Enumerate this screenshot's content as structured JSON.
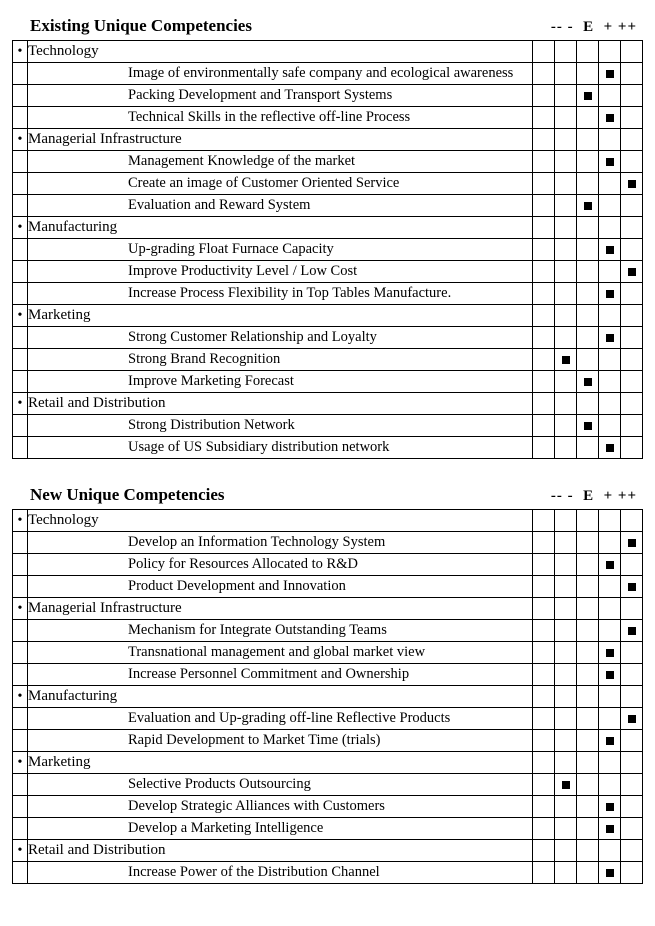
{
  "scale_labels": [
    "--",
    "-",
    "E",
    "+",
    "++"
  ],
  "col_count": 5,
  "mark_color": "#000000",
  "sections": [
    {
      "title": "Existing Unique Competencies",
      "categories": [
        {
          "name": "Technology",
          "items": [
            {
              "label": "Image of environmentally safe company and ecological awareness",
              "rating": 3
            },
            {
              "label": "Packing Development and Transport Systems",
              "rating": 2
            },
            {
              "label": "Technical Skills in the reflective off-line Process",
              "rating": 3
            }
          ]
        },
        {
          "name": "Managerial Infrastructure",
          "items": [
            {
              "label": "Management Knowledge of the market",
              "rating": 3
            },
            {
              "label": "Create an image of Customer Oriented Service",
              "rating": 4
            },
            {
              "label": "Evaluation and Reward System",
              "rating": 2
            }
          ]
        },
        {
          "name": "Manufacturing",
          "items": [
            {
              "label": "Up-grading Float Furnace Capacity",
              "rating": 3
            },
            {
              "label": "Improve Productivity Level / Low Cost",
              "rating": 4
            },
            {
              "label": "Increase Process Flexibility in Top Tables Manufacture.",
              "rating": 3
            }
          ]
        },
        {
          "name": "Marketing",
          "items": [
            {
              "label": "Strong Customer Relationship and Loyalty",
              "rating": 3
            },
            {
              "label": "Strong Brand Recognition",
              "rating": 1
            },
            {
              "label": "Improve Marketing Forecast",
              "rating": 2
            }
          ]
        },
        {
          "name": "Retail and Distribution",
          "items": [
            {
              "label": "Strong Distribution Network",
              "rating": 2
            },
            {
              "label": "Usage of US Subsidiary distribution network",
              "rating": 3
            }
          ]
        }
      ]
    },
    {
      "title": "New Unique Competencies",
      "categories": [
        {
          "name": "Technology",
          "items": [
            {
              "label": "Develop an Information Technology  System",
              "rating": 4
            },
            {
              "label": "Policy for Resources Allocated to R&D",
              "rating": 3
            },
            {
              "label": "Product Development and Innovation",
              "rating": 4
            }
          ]
        },
        {
          "name": "Managerial Infrastructure",
          "items": [
            {
              "label": "Mechanism for Integrate  Outstanding Teams",
              "rating": 4
            },
            {
              "label": "Transnational management and global market view",
              "rating": 3
            },
            {
              "label": "Increase Personnel Commitment and Ownership",
              "rating": 3
            }
          ]
        },
        {
          "name": "Manufacturing",
          "items": [
            {
              "label": "Evaluation and Up-grading off-line Reflective Products",
              "rating": 4
            },
            {
              "label": "Rapid Development to Market Time (trials)",
              "rating": 3
            }
          ]
        },
        {
          "name": "Marketing",
          "items": [
            {
              "label": "Selective Products Outsourcing",
              "rating": 1
            },
            {
              "label": "Develop Strategic Alliances with Customers",
              "rating": 3
            },
            {
              "label": "Develop a Marketing Intelligence",
              "rating": 3
            }
          ]
        },
        {
          "name": "Retail and Distribution",
          "items": [
            {
              "label": "Increase Power of the Distribution Channel",
              "rating": 3
            }
          ]
        }
      ]
    }
  ]
}
